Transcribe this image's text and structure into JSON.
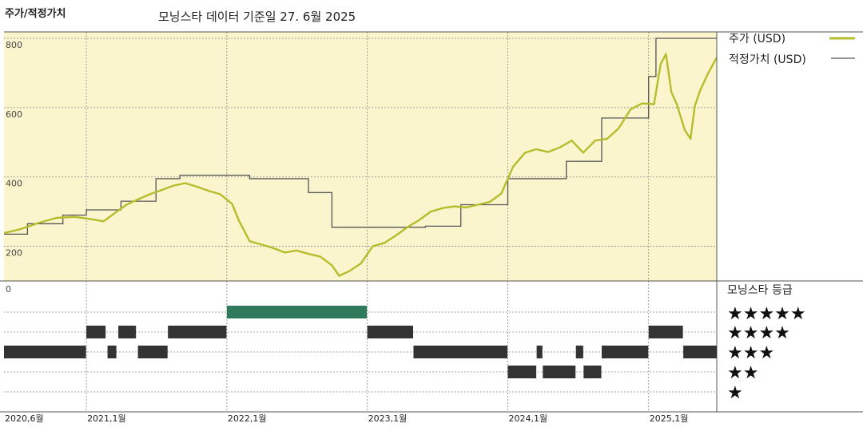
{
  "header": {
    "title": "주가/적정가치",
    "subtitle": "모닝스타 데이터 기준일 27. 6월 2025"
  },
  "legend": {
    "price_label": "주가 (USD)",
    "fair_label": "적정가치 (USD)",
    "rating_title": "모닝스타 등급",
    "stars": [
      "★★★★★",
      "★★★★",
      "★★★",
      "★★",
      "★"
    ]
  },
  "colors": {
    "price_line": "#b5bd2c",
    "fair_line": "#555555",
    "plot_bg": "#faf5cd",
    "rating_bar": "#333333",
    "rating_bar_5": "#2e7a5a"
  },
  "chart_data": [
    {
      "type": "line",
      "title": "",
      "ylim": [
        100,
        800
      ],
      "y_ticks": [
        200,
        400,
        600,
        800
      ],
      "grid": true,
      "legend_position": "right",
      "series": [
        {
          "name": "주가 (USD)",
          "points": [
            [
              "2020-06-01",
              238
            ],
            [
              "2020-07-15",
              250
            ],
            [
              "2020-09-01",
              268
            ],
            [
              "2020-10-15",
              282
            ],
            [
              "2020-12-01",
              285
            ],
            [
              "2021-01-15",
              278
            ],
            [
              "2021-02-15",
              272
            ],
            [
              "2021-03-15",
              295
            ],
            [
              "2021-04-15",
              320
            ],
            [
              "2021-05-15",
              335
            ],
            [
              "2021-06-15",
              350
            ],
            [
              "2021-07-15",
              362
            ],
            [
              "2021-08-15",
              375
            ],
            [
              "2021-09-15",
              382
            ],
            [
              "2021-10-15",
              372
            ],
            [
              "2021-11-15",
              360
            ],
            [
              "2021-12-15",
              350
            ],
            [
              "2022-01-15",
              322
            ],
            [
              "2022-02-01",
              275
            ],
            [
              "2022-03-01",
              215
            ],
            [
              "2022-04-01",
              205
            ],
            [
              "2022-05-01",
              195
            ],
            [
              "2022-06-01",
              182
            ],
            [
              "2022-07-01",
              188
            ],
            [
              "2022-08-01",
              178
            ],
            [
              "2022-09-01",
              170
            ],
            [
              "2022-10-01",
              145
            ],
            [
              "2022-10-20",
              115
            ],
            [
              "2022-11-15",
              128
            ],
            [
              "2022-12-15",
              150
            ],
            [
              "2023-01-15",
              200
            ],
            [
              "2023-02-15",
              210
            ],
            [
              "2023-03-15",
              230
            ],
            [
              "2023-04-15",
              255
            ],
            [
              "2023-05-15",
              275
            ],
            [
              "2023-06-15",
              300
            ],
            [
              "2023-07-15",
              310
            ],
            [
              "2023-08-15",
              315
            ],
            [
              "2023-09-15",
              312
            ],
            [
              "2023-10-15",
              320
            ],
            [
              "2023-11-15",
              328
            ],
            [
              "2023-12-15",
              352
            ],
            [
              "2024-01-15",
              430
            ],
            [
              "2024-02-15",
              470
            ],
            [
              "2024-03-15",
              480
            ],
            [
              "2024-04-15",
              472
            ],
            [
              "2024-05-15",
              485
            ],
            [
              "2024-06-15",
              505
            ],
            [
              "2024-07-15",
              470
            ],
            [
              "2024-08-15",
              505
            ],
            [
              "2024-09-15",
              510
            ],
            [
              "2024-10-15",
              540
            ],
            [
              "2024-11-15",
              595
            ],
            [
              "2024-12-15",
              612
            ],
            [
              "2025-01-15",
              610
            ],
            [
              "2025-02-01",
              725
            ],
            [
              "2025-02-15",
              755
            ],
            [
              "2025-03-01",
              645
            ],
            [
              "2025-03-15",
              610
            ],
            [
              "2025-04-05",
              535
            ],
            [
              "2025-04-20",
              510
            ],
            [
              "2025-05-01",
              605
            ],
            [
              "2025-05-15",
              650
            ],
            [
              "2025-06-05",
              700
            ],
            [
              "2025-06-27",
              745
            ]
          ]
        },
        {
          "name": "적정가치 (USD)",
          "points": [
            [
              "2020-06-01",
              235
            ],
            [
              "2020-08-01",
              235
            ],
            [
              "2020-08-01",
              265
            ],
            [
              "2020-11-01",
              265
            ],
            [
              "2020-11-01",
              290
            ],
            [
              "2021-01-01",
              290
            ],
            [
              "2021-01-01",
              305
            ],
            [
              "2021-04-01",
              305
            ],
            [
              "2021-04-01",
              330
            ],
            [
              "2021-07-01",
              330
            ],
            [
              "2021-07-01",
              395
            ],
            [
              "2021-09-01",
              395
            ],
            [
              "2021-09-01",
              405
            ],
            [
              "2022-03-01",
              405
            ],
            [
              "2022-03-01",
              395
            ],
            [
              "2022-05-01",
              395
            ],
            [
              "2022-05-01",
              395
            ],
            [
              "2022-08-01",
              395
            ],
            [
              "2022-08-01",
              355
            ],
            [
              "2022-10-01",
              355
            ],
            [
              "2022-10-01",
              255
            ],
            [
              "2023-06-01",
              255
            ],
            [
              "2023-06-01",
              258
            ],
            [
              "2023-09-01",
              258
            ],
            [
              "2023-09-01",
              320
            ],
            [
              "2024-01-01",
              320
            ],
            [
              "2024-01-01",
              395
            ],
            [
              "2024-06-01",
              395
            ],
            [
              "2024-06-01",
              445
            ],
            [
              "2024-09-01",
              445
            ],
            [
              "2024-09-01",
              570
            ],
            [
              "2025-01-01",
              570
            ],
            [
              "2025-01-01",
              690
            ],
            [
              "2025-01-20",
              690
            ],
            [
              "2025-01-20",
              800
            ],
            [
              "2025-06-27",
              800
            ]
          ]
        }
      ]
    },
    {
      "type": "bar",
      "title": "모닝스타 등급",
      "x_ticks": [
        "2020,6월",
        "2021,1월",
        "2022,1월",
        "2023,1월",
        "2024,1월",
        "2025,1월"
      ],
      "y_tick_label": "0",
      "rating_segments": [
        {
          "start": "2020-06-01",
          "end": "2020-12-31",
          "stars": 3
        },
        {
          "start": "2021-01-01",
          "end": "2021-02-20",
          "stars": 4
        },
        {
          "start": "2021-02-25",
          "end": "2021-03-20",
          "stars": 3
        },
        {
          "start": "2021-03-25",
          "end": "2021-05-10",
          "stars": 4
        },
        {
          "start": "2021-05-15",
          "end": "2021-07-31",
          "stars": 3
        },
        {
          "start": "2021-08-01",
          "end": "2021-12-31",
          "stars": 4
        },
        {
          "start": "2022-01-01",
          "end": "2022-12-31",
          "stars": 5
        },
        {
          "start": "2023-01-01",
          "end": "2023-04-30",
          "stars": 4
        },
        {
          "start": "2023-05-01",
          "end": "2023-12-31",
          "stars": 3
        },
        {
          "start": "2024-01-01",
          "end": "2024-03-15",
          "stars": 2
        },
        {
          "start": "2024-03-16",
          "end": "2024-03-31",
          "stars": 3
        },
        {
          "start": "2024-04-01",
          "end": "2024-06-25",
          "stars": 2
        },
        {
          "start": "2024-06-26",
          "end": "2024-07-15",
          "stars": 3
        },
        {
          "start": "2024-07-16",
          "end": "2024-08-31",
          "stars": 2
        },
        {
          "start": "2024-09-01",
          "end": "2024-12-31",
          "stars": 3
        },
        {
          "start": "2025-01-01",
          "end": "2025-03-31",
          "stars": 4
        },
        {
          "start": "2025-04-01",
          "end": "2025-06-27",
          "stars": 3
        }
      ]
    }
  ]
}
